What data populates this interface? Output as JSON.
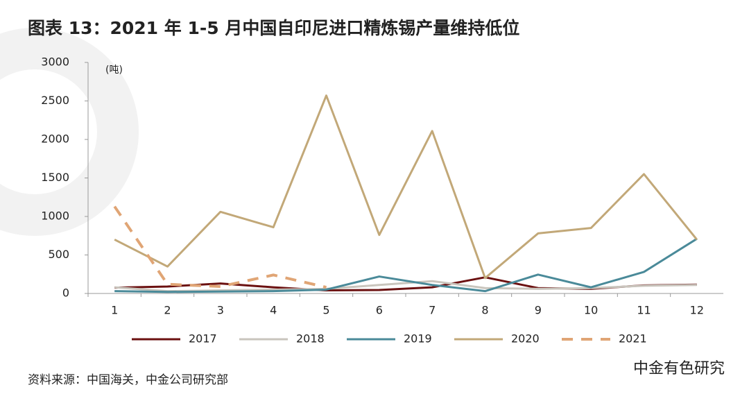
{
  "chart_data": {
    "type": "line",
    "title": "图表 13：2021 年 1-5 月中国自印尼进口精炼锡产量维持低位",
    "y_label": "(吨)",
    "categories": [
      "1",
      "2",
      "3",
      "4",
      "5",
      "6",
      "7",
      "8",
      "9",
      "10",
      "11",
      "12"
    ],
    "series": [
      {
        "name": "2017",
        "color": "#6b1010",
        "values": [
          75,
          90,
          130,
          80,
          40,
          45,
          80,
          210,
          70,
          60,
          105,
          115
        ]
      },
      {
        "name": "2018",
        "color": "#c9c5bd",
        "values": [
          80,
          30,
          40,
          50,
          60,
          110,
          160,
          70,
          60,
          70,
          100,
          110
        ]
      },
      {
        "name": "2019",
        "color": "#4a8a99",
        "values": [
          30,
          20,
          25,
          30,
          50,
          220,
          110,
          30,
          245,
          80,
          280,
          710
        ]
      },
      {
        "name": "2020",
        "color": "#c2a878",
        "values": [
          700,
          350,
          1060,
          860,
          2570,
          760,
          2110,
          200,
          780,
          850,
          1550,
          700
        ]
      },
      {
        "name": "2021",
        "color": "#e0a575",
        "dashed": true,
        "values": [
          1130,
          120,
          90,
          240,
          80,
          null,
          null,
          null,
          null,
          null,
          null,
          null
        ]
      }
    ],
    "ylim": [
      0,
      3000
    ],
    "yticks": [
      0,
      500,
      1000,
      1500,
      2000,
      2500,
      3000
    ],
    "legend": "bottom",
    "source": "资料来源：中国海关，中金公司研究部",
    "watermark": "中金有色研究"
  }
}
